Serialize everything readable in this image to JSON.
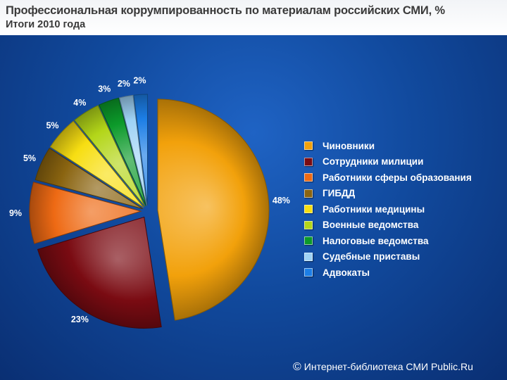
{
  "header": {
    "title": "Профессиональная коррумпированность по материалам российских СМИ, %",
    "subtitle": "Итоги 2010 года"
  },
  "chart_data": {
    "type": "pie",
    "title": "Профессиональная коррумпированность по материалам российских СМИ, %",
    "subtitle": "Итоги 2010 года",
    "legend_position": "right",
    "slices": [
      {
        "label": "Чиновники",
        "value": 48,
        "value_label": "48%",
        "color": "#f2a10b"
      },
      {
        "label": "Сотрудники милиции",
        "value": 23,
        "value_label": "23%",
        "color": "#7a0b12"
      },
      {
        "label": "Работники сферы образования",
        "value": 9,
        "value_label": "9%",
        "color": "#ee6a14"
      },
      {
        "label": "ГИБДД",
        "value": 5,
        "value_label": "5%",
        "color": "#8a6410"
      },
      {
        "label": "Работники  медицины",
        "value": 5,
        "value_label": "5%",
        "color": "#f7de12"
      },
      {
        "label": "Военные ведомства",
        "value": 4,
        "value_label": "4%",
        "color": "#b3d619"
      },
      {
        "label": "Налоговые ведомства",
        "value": 3,
        "value_label": "3%",
        "color": "#0c9a2a"
      },
      {
        "label": "Судебные приставы",
        "value": 2,
        "value_label": "2%",
        "color": "#9ed2f5"
      },
      {
        "label": "Адвокаты",
        "value": 2,
        "value_label": "2%",
        "color": "#1c7ee6"
      }
    ]
  },
  "footer": {
    "copyright_symbol": "©",
    "text": "Интернет-библиотека СМИ Public.Ru"
  }
}
